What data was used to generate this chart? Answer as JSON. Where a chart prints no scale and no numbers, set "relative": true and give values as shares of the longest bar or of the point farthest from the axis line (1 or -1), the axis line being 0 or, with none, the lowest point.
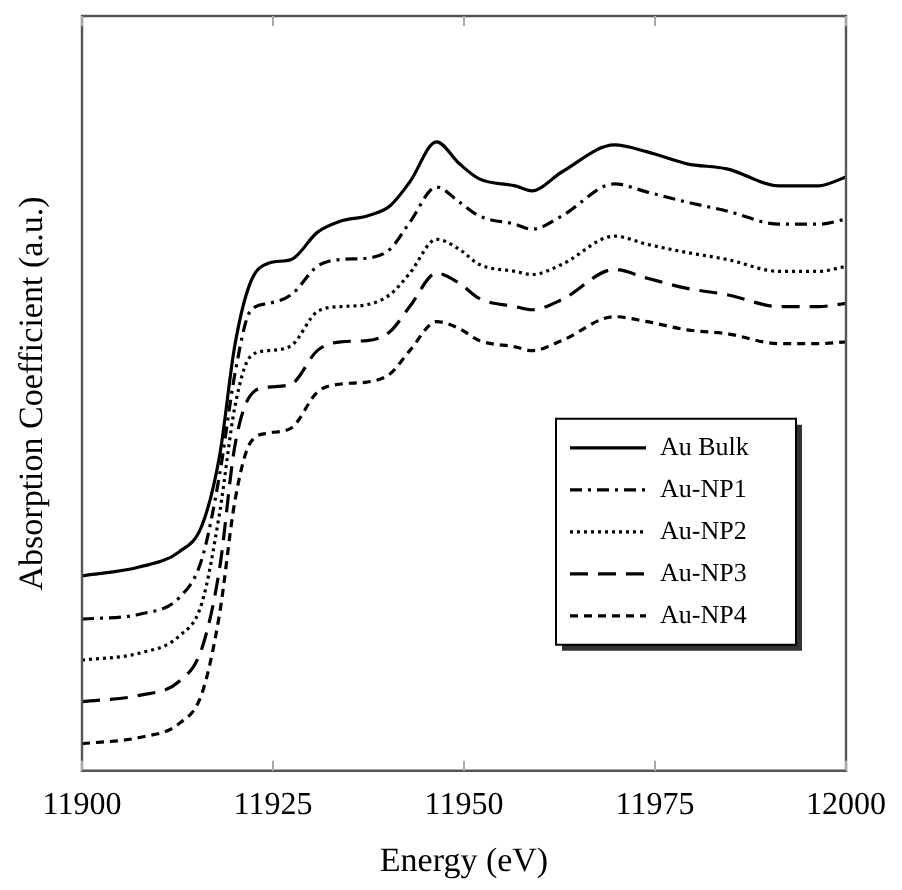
{
  "chart_data": {
    "type": "line",
    "relative": true,
    "xlabel": "Energy (eV)",
    "ylabel": "Absorption Coefficient (a.u.)",
    "x": [
      11900,
      11907.5,
      11912.7,
      11915.7,
      11918,
      11920,
      11922,
      11924.4,
      11927.4,
      11930.8,
      11933.9,
      11937.3,
      11940.3,
      11942.9,
      11946.4,
      11949.4,
      11952,
      11956.7,
      11958.9,
      11962.8,
      11969.7,
      11974,
      11979.2,
      11984.4,
      11991.3,
      11996.4,
      12000
    ],
    "xlim": [
      11900,
      12000
    ],
    "xticks": [
      11900,
      11925,
      11950,
      11975,
      12000
    ],
    "grid": false,
    "legend": "bottom right",
    "marker": "none",
    "series": [
      {
        "name": "Au Bulk",
        "color": "#000000",
        "line_style": "solid",
        "values": [
          0.31,
          0.324,
          0.348,
          0.39,
          0.5,
          0.676,
          0.775,
          0.807,
          0.813,
          0.856,
          0.874,
          0.882,
          0.898,
          0.936,
          1.0,
          0.965,
          0.941,
          0.93,
          0.922,
          0.952,
          0.995,
          0.984,
          0.965,
          0.957,
          0.93,
          0.93,
          0.944
        ]
      },
      {
        "name": "Au-NP1",
        "color": "#000000",
        "line_style": "dashdot",
        "values": [
          0.241,
          0.249,
          0.275,
          0.337,
          0.47,
          0.63,
          0.73,
          0.743,
          0.757,
          0.802,
          0.813,
          0.815,
          0.829,
          0.872,
          0.928,
          0.904,
          0.882,
          0.869,
          0.861,
          0.882,
          0.933,
          0.92,
          0.904,
          0.89,
          0.869,
          0.869,
          0.877
        ]
      },
      {
        "name": "Au-NP2",
        "color": "#000000",
        "line_style": "dotted",
        "values": [
          0.176,
          0.187,
          0.214,
          0.267,
          0.409,
          0.578,
          0.658,
          0.668,
          0.676,
          0.73,
          0.738,
          0.741,
          0.757,
          0.791,
          0.845,
          0.829,
          0.805,
          0.794,
          0.789,
          0.805,
          0.85,
          0.837,
          0.824,
          0.813,
          0.794,
          0.794,
          0.802
        ]
      },
      {
        "name": "Au-NP3",
        "color": "#000000",
        "line_style": "longdash",
        "values": [
          0.11,
          0.12,
          0.142,
          0.195,
          0.321,
          0.516,
          0.596,
          0.61,
          0.615,
          0.668,
          0.682,
          0.684,
          0.698,
          0.738,
          0.791,
          0.775,
          0.751,
          0.738,
          0.733,
          0.749,
          0.797,
          0.783,
          0.767,
          0.757,
          0.738,
          0.738,
          0.743
        ]
      },
      {
        "name": "Au-NP4",
        "color": "#000000",
        "line_style": "dashed",
        "values": [
          0.043,
          0.053,
          0.075,
          0.123,
          0.249,
          0.428,
          0.521,
          0.537,
          0.545,
          0.602,
          0.615,
          0.618,
          0.631,
          0.668,
          0.714,
          0.703,
          0.684,
          0.674,
          0.668,
          0.684,
          0.722,
          0.714,
          0.701,
          0.695,
          0.679,
          0.679,
          0.682
        ]
      }
    ]
  }
}
